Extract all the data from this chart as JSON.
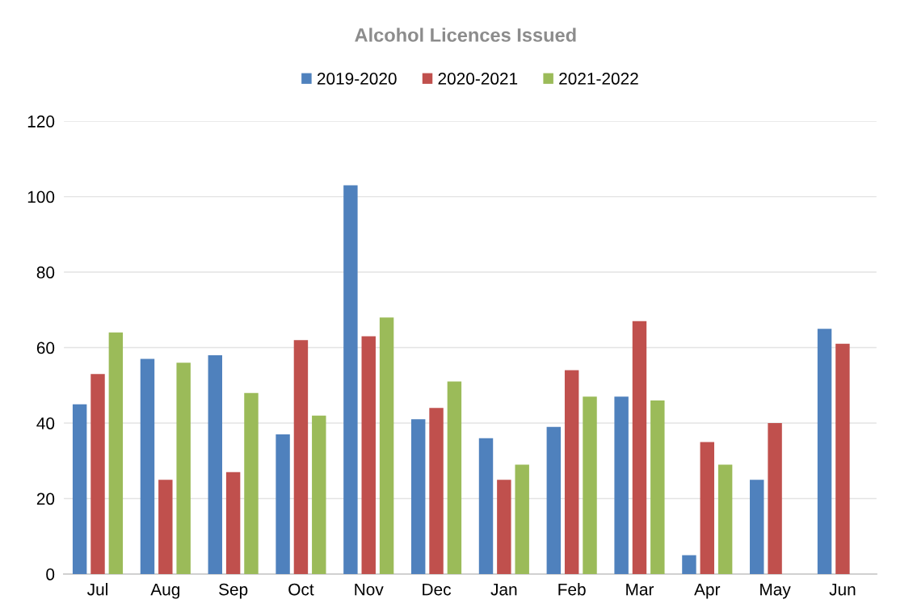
{
  "chart_data": {
    "type": "bar",
    "title": "Alcohol Licences Issued",
    "categories": [
      "Jul",
      "Aug",
      "Sep",
      "Oct",
      "Nov",
      "Dec",
      "Jan",
      "Feb",
      "Mar",
      "Apr",
      "May",
      "Jun"
    ],
    "series": [
      {
        "name": "2019-2020",
        "color": "#4f81bd",
        "values": [
          45,
          57,
          58,
          37,
          103,
          41,
          36,
          39,
          47,
          5,
          25,
          65
        ]
      },
      {
        "name": "2020-2021",
        "color": "#c0504d",
        "values": [
          53,
          25,
          27,
          62,
          63,
          44,
          25,
          54,
          67,
          35,
          40,
          61
        ]
      },
      {
        "name": "2021-2022",
        "color": "#9bbb59",
        "values": [
          64,
          56,
          48,
          42,
          68,
          51,
          29,
          47,
          46,
          29,
          null,
          null
        ]
      }
    ],
    "ylim": [
      0,
      120
    ],
    "yticks": [
      0,
      20,
      40,
      60,
      80,
      100,
      120
    ],
    "grid": "y",
    "legend": "top"
  }
}
